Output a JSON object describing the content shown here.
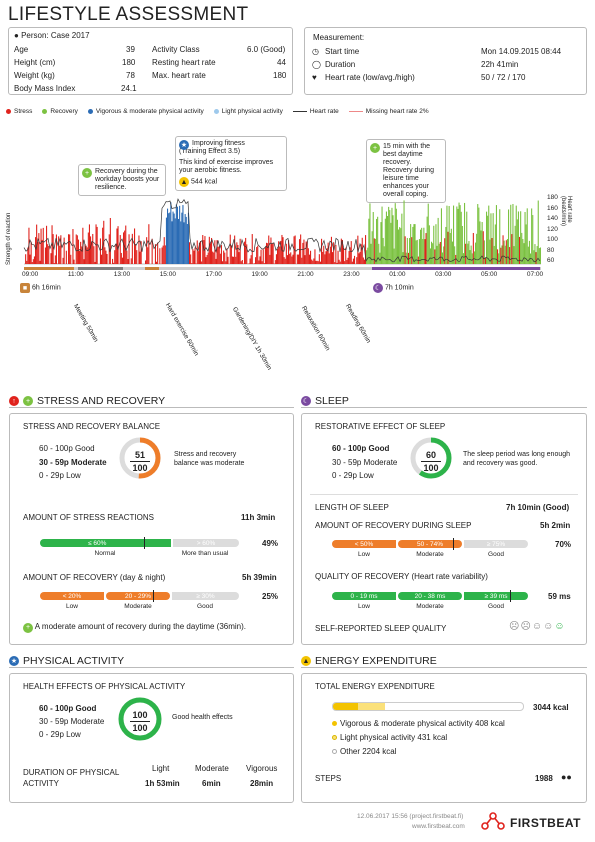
{
  "header": {
    "title": "LIFESTYLE ASSESSMENT"
  },
  "person": {
    "label": "Person: Case 2017",
    "fields": [
      {
        "k": "Age",
        "v": "39"
      },
      {
        "k": "Height (cm)",
        "v": "180"
      },
      {
        "k": "Weight (kg)",
        "v": "78"
      },
      {
        "k": "Body Mass Index",
        "v": "24.1"
      }
    ],
    "fields2": [
      {
        "k": "Activity Class",
        "v": "6.0 (Good)"
      },
      {
        "k": "Resting heart rate",
        "v": "44"
      },
      {
        "k": "Max. heart rate",
        "v": "180"
      }
    ]
  },
  "measurement": {
    "label": "Measurement:",
    "start_k": "Start time",
    "start_v": "Mon 14.09.2015 08:44",
    "dur_k": "Duration",
    "dur_v": "22h 41min",
    "hr_k": "Heart rate (low/avg./high)",
    "hr_v": "50 / 72 / 170"
  },
  "legend": {
    "stress": "Stress",
    "recovery": "Recovery",
    "vigorous": "Vigorous & moderate physical activity",
    "light": "Light physical activity",
    "hr": "Heart rate",
    "missing": "Missing heart rate 2%"
  },
  "colors": {
    "stress": "#e0231d",
    "recovery": "#7cc242",
    "vigorous": "#2b6cb5",
    "light": "#9ec9ec",
    "orange": "#ee7d2a",
    "green": "#2db34a",
    "grey": "#dcdcdc",
    "purple": "#7a4aa0",
    "yellow": "#f3c300"
  },
  "callouts": {
    "c1": "Recovery during the workday boosts your resilience.",
    "c2a": "Improving fitness",
    "c2b": "(Training Effect 3.5)",
    "c2c": "This kind of exercise improves your aerobic fitness.",
    "c2d": "544 kcal",
    "c3": "15 min with the best daytime recovery. Recovery during leisure time enhances your overall coping."
  },
  "chart": {
    "ylabel": "Strength of reaction",
    "y2label": "Heart rate (beats/min)",
    "yticks": [
      "180",
      "160",
      "140",
      "120",
      "100",
      "80",
      "60"
    ],
    "times": [
      "09:00",
      "11:00",
      "13:00",
      "15:00",
      "17:00",
      "19:00",
      "21:00",
      "23:00",
      "01:00",
      "03:00",
      "05:00",
      "07:00"
    ],
    "work": "6h 16min",
    "sleep": "7h 10min",
    "events": [
      "Meeting 50min",
      "Hard exercise 60min",
      "Gardening/DIY 1h 30min",
      "Relaxation 60min",
      "Reading 60min"
    ]
  },
  "stress_recovery": {
    "title": "STRESS AND RECOVERY",
    "balance_title": "STRESS AND RECOVERY BALANCE",
    "good": "60 - 100p Good",
    "moderate": "30 - 59p Moderate",
    "low": "0 - 29p Low",
    "score": "51",
    "max": "100",
    "score_pct": 51,
    "note": "Stress and recovery balance was moderate",
    "stress_title": "AMOUNT OF STRESS REACTIONS",
    "stress_time": "11h 3min",
    "stress_seg1": "≤ 60%",
    "stress_seg2": "> 60%",
    "stress_lbl1": "Normal",
    "stress_lbl2": "More than usual",
    "stress_pct": "49%",
    "rec_title": "AMOUNT OF RECOVERY (day & night)",
    "rec_time": "5h 39min",
    "rec_seg1": "< 20%",
    "rec_seg2": "20 - 29%",
    "rec_seg3": "≥ 30%",
    "rec_lbl1": "Low",
    "rec_lbl2": "Moderate",
    "rec_lbl3": "Good",
    "rec_pct": "25%",
    "footnote": "A moderate amount of recovery during the daytime (36min)."
  },
  "sleep": {
    "title": "SLEEP",
    "rest_title": "RESTORATIVE EFFECT OF SLEEP",
    "good": "60 - 100p Good",
    "moderate": "30 - 59p Moderate",
    "low": "0 - 29p Low",
    "score": "60",
    "max": "100",
    "score_pct": 60,
    "note": "The sleep period was long enough and recovery was good.",
    "length_k": "LENGTH OF SLEEP",
    "length_v": "7h 10min (Good)",
    "rec_k": "AMOUNT OF RECOVERY DURING SLEEP",
    "rec_v": "5h 2min",
    "rec_seg1": "< 50%",
    "rec_seg2": "50 - 74%",
    "rec_seg3": "≥ 75%",
    "rec_lbl1": "Low",
    "rec_lbl2": "Moderate",
    "rec_lbl3": "Good",
    "rec_pct": "70%",
    "q_k": "QUALITY OF RECOVERY (Heart rate variability)",
    "q_seg1": "0 - 19 ms",
    "q_seg2": "20 - 38 ms",
    "q_seg3": "≥ 39 ms",
    "q_lbl1": "Low",
    "q_lbl2": "Moderate",
    "q_lbl3": "Good",
    "q_v": "59 ms",
    "self_k": "SELF-REPORTED SLEEP QUALITY"
  },
  "physical": {
    "title": "PHYSICAL ACTIVITY",
    "health_title": "HEALTH EFFECTS OF PHYSICAL ACTIVITY",
    "good": "60 - 100p Good",
    "moderate": "30 - 59p Moderate",
    "low": "0 - 29p Low",
    "score": "100",
    "max": "100",
    "score_pct": 100,
    "note": "Good health effects",
    "dur_k1": "DURATION OF PHYSICAL",
    "dur_k2": "ACTIVITY",
    "light_k": "Light",
    "light_v": "1h 53min",
    "mod_k": "Moderate",
    "mod_v": "6min",
    "vig_k": "Vigorous",
    "vig_v": "28min"
  },
  "energy": {
    "title": "ENERGY EXPENDITURE",
    "total_title": "TOTAL ENERGY EXPENDITURE",
    "total_v": "3044 kcal",
    "total_kcal": 3044,
    "vig_kcal": 408,
    "light_kcal": 431,
    "l1": "Vigorous & moderate physical activity 408 kcal",
    "l2": "Light physical activity 431 kcal",
    "l3": "Other 2204 kcal",
    "steps_k": "STEPS",
    "steps_v": "1988"
  },
  "footer": {
    "date": "12.06.2017 15:56 (project.firstbeat.fi)",
    "url": "www.firstbeat.com",
    "brand": "FIRSTBEAT"
  }
}
